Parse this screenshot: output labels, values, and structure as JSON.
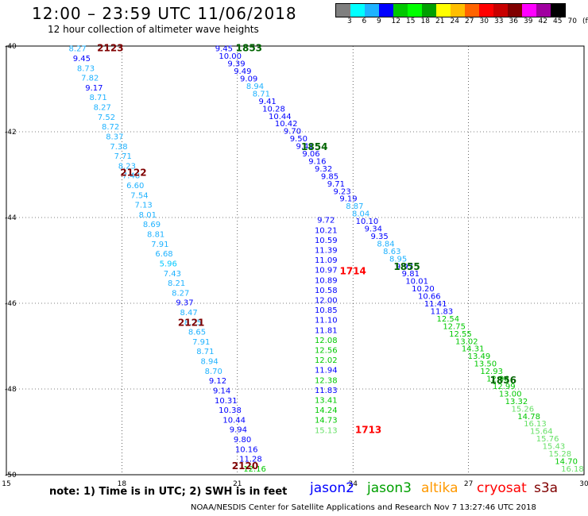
{
  "header": {
    "title": "12:00 – 23:59 UTC 11/06/2018",
    "subtitle": "12 hour collection of altimeter wave heights"
  },
  "legend": {
    "colors": [
      "#7f7f7f",
      "#00ffff",
      "#1fb2ff",
      "#0000ff",
      "#00c800",
      "#00ff00",
      "#009f00",
      "#ffff00",
      "#ffbe00",
      "#ff6400",
      "#ff0000",
      "#c80000",
      "#800000",
      "#ff00ff",
      "#a000a0",
      "#000000"
    ],
    "labels": [
      "3",
      "6",
      "9",
      "12",
      "15",
      "18",
      "21",
      "24",
      "27",
      "30",
      "33",
      "36",
      "39",
      "42",
      "45",
      "70",
      "(ft)"
    ]
  },
  "map": {
    "lon_range": [
      15,
      30
    ],
    "lat_range": [
      -50,
      -40
    ],
    "lon_ticks": [
      "15",
      "18",
      "21",
      "24",
      "27",
      "30"
    ],
    "lat_ticks": [
      "-40",
      "-42",
      "-44",
      "-46",
      "-48",
      "-50"
    ]
  },
  "tracks": [
    {
      "name": "pass-2123",
      "pass_label": "2123",
      "label_color": "#800000",
      "label_lon": 17.7,
      "label_lat": -40.05,
      "lon_start": 16.85,
      "lat_start": -40.05,
      "lon_end": 21.45,
      "lat_end": -49.85,
      "values": [
        "8.27",
        "9.45",
        "8.73",
        "7.82",
        "9.17",
        "8.71",
        "8.27",
        "7.52",
        "8.72",
        "8.37",
        "7.38",
        "7.71",
        "8.23",
        "7.48",
        "6.60",
        "7.54",
        "7.13",
        "8.01",
        "8.69",
        "8.81",
        "7.91",
        "6.68",
        "5.96",
        "7.43",
        "8.21",
        "8.27",
        "9.37",
        "8.47",
        "8.25",
        "8.65",
        "7.91",
        "8.71",
        "8.94",
        "8.70",
        "9.12",
        "9.14",
        "10.31",
        "10.38",
        "10.44",
        "9.94",
        "9.80",
        "10.16",
        "11.28",
        "12.16"
      ]
    },
    {
      "name": "pass-1853",
      "pass_label": "1853",
      "label_color": "#006400",
      "label_lon": 21.3,
      "label_lat": -40.05,
      "lon_start": 20.65,
      "lat_start": -40.05,
      "lon_end": 29.7,
      "lat_end": -49.85,
      "values": [
        "9.45",
        "10.00",
        "9.39",
        "9.49",
        "9.09",
        "8.94",
        "8.71",
        "9.41",
        "10.28",
        "10.44",
        "10.42",
        "9.70",
        "9.50",
        "9.41",
        "9.06",
        "9.16",
        "9.32",
        "9.85",
        "9.71",
        "9.23",
        "9.19",
        "8.87",
        "8.04",
        "10.10",
        "9.34",
        "9.35",
        "8.84",
        "8.63",
        "8.95",
        "9.97",
        "9.81",
        "10.01",
        "10.20",
        "10.66",
        "11.41",
        "11.83",
        "12.54",
        "12.75",
        "12.55",
        "13.02",
        "14.31",
        "13.49",
        "13.50",
        "12.93",
        "12.96",
        "12.99",
        "13.00",
        "13.32",
        "15.26",
        "14.78",
        "16.13",
        "15.64",
        "15.76",
        "15.43",
        "15.28",
        "14.70",
        "16.18"
      ]
    },
    {
      "name": "pass-1714",
      "pass_label": "1714",
      "label_color": "#ff0000",
      "label_lon": 24.0,
      "label_lat": -45.25,
      "lon_start": 23.3,
      "lat_start": -44.05,
      "lon_end": 23.3,
      "lat_end": -48.95,
      "values": [
        "9.72",
        "10.21",
        "10.59",
        "11.39",
        "11.09",
        "10.97",
        "10.89",
        "10.58",
        "12.00",
        "10.85",
        "11.10",
        "11.81",
        "12.08",
        "12.56",
        "12.02",
        "11.94",
        "12.38",
        "11.83",
        "13.41",
        "14.24",
        "14.73",
        "15.13"
      ]
    }
  ],
  "pass_labels_extra": [
    {
      "label": "2122",
      "color": "#800000",
      "lon": 18.3,
      "lat": -42.95
    },
    {
      "label": "2121",
      "color": "#800000",
      "lon": 19.8,
      "lat": -46.45
    },
    {
      "label": "2120",
      "color": "#800000",
      "lon": 21.2,
      "lat": -49.8
    },
    {
      "label": "1854",
      "color": "#006400",
      "lon": 23.0,
      "lat": -42.35
    },
    {
      "label": "1855",
      "color": "#006400",
      "lon": 25.4,
      "lat": -45.15
    },
    {
      "label": "1856",
      "color": "#006400",
      "lon": 27.9,
      "lat": -47.8
    },
    {
      "label": "1713",
      "color": "#ff0000",
      "lon": 24.4,
      "lat": -48.95
    }
  ],
  "footer": {
    "note": "note: 1) Time is in UTC; 2) SWH is in feet",
    "satellites": [
      {
        "name": "jason2",
        "color": "#0000ff"
      },
      {
        "name": "jason3",
        "color": "#00a000"
      },
      {
        "name": "altika",
        "color": "#ff9900"
      },
      {
        "name": "cryosat",
        "color": "#ff0000"
      },
      {
        "name": "s3a",
        "color": "#800000"
      }
    ],
    "credit": "NOAA/NESDIS Center for Satellite Applications and Research     Nov  7 13:27:46 UTC 2018"
  }
}
